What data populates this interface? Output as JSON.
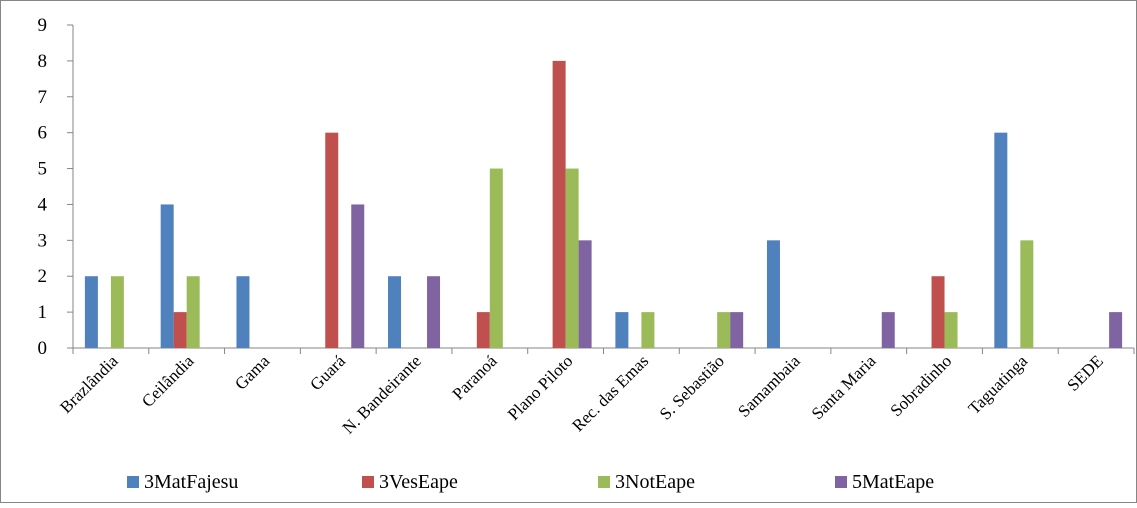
{
  "chart_data": {
    "type": "bar",
    "title": "",
    "xlabel": "",
    "ylabel": "",
    "ylim": [
      0,
      9
    ],
    "yticks": [
      0,
      1,
      2,
      3,
      4,
      5,
      6,
      7,
      8,
      9
    ],
    "grid": false,
    "legend_position": "bottom",
    "categories": [
      "Brazlândia",
      "Ceilândia",
      "Gama",
      "Guará",
      "N. Bandeirante",
      "Paranoá",
      "Plano Piloto",
      "Rec. das Emas",
      "S. Sebastião",
      "Samambaia",
      "Santa Maria",
      "Sobradinho",
      "Taguatinga",
      "SEDE"
    ],
    "series": [
      {
        "name": "3MatFajesu",
        "color": "#4F81BD",
        "values": [
          2,
          4,
          2,
          0,
          2,
          0,
          0,
          1,
          0,
          3,
          0,
          0,
          6,
          0
        ]
      },
      {
        "name": "3VesEape",
        "color": "#C0504D",
        "values": [
          0,
          1,
          0,
          6,
          0,
          1,
          8,
          0,
          0,
          0,
          0,
          2,
          0,
          0
        ]
      },
      {
        "name": "3NotEape",
        "color": "#9BBB59",
        "values": [
          2,
          2,
          0,
          0,
          0,
          5,
          5,
          1,
          1,
          0,
          0,
          1,
          3,
          0
        ]
      },
      {
        "name": "5MatEape",
        "color": "#8064A2",
        "values": [
          0,
          0,
          0,
          4,
          2,
          0,
          3,
          0,
          1,
          0,
          1,
          0,
          0,
          1
        ]
      }
    ]
  }
}
